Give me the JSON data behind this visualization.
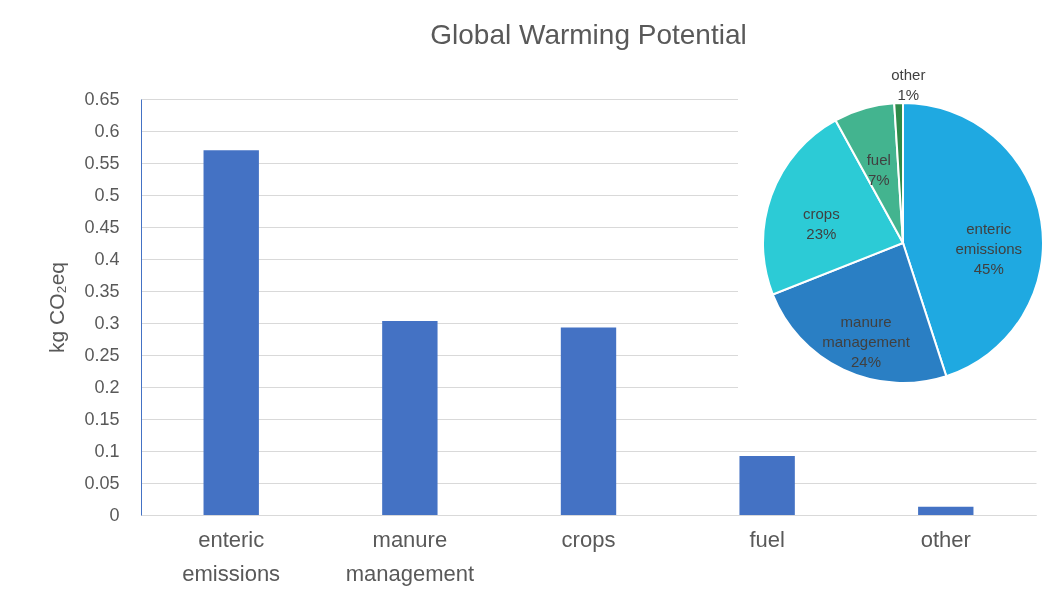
{
  "chart_data": [
    {
      "type": "bar",
      "title": "Global Warming Potential",
      "ylabel": "kg CO₂eq",
      "categories": [
        "enteric emissions",
        "manure management",
        "crops",
        "fuel",
        "other"
      ],
      "values": [
        0.57,
        0.303,
        0.293,
        0.092,
        0.013
      ],
      "color": "#4472c4",
      "ylim": [
        0,
        0.65
      ],
      "yticks": [
        0,
        0.05,
        0.1,
        0.15,
        0.2,
        0.25,
        0.3,
        0.35,
        0.4,
        0.45,
        0.5,
        0.55,
        0.6,
        0.65
      ],
      "grid": "y"
    },
    {
      "type": "pie",
      "categories": [
        "enteric emissions",
        "manure management",
        "crops",
        "fuel",
        "other"
      ],
      "values": [
        45,
        24,
        23,
        7,
        1
      ],
      "colors": [
        "#1fa9e1",
        "#2a7fc4",
        "#2ccbd6",
        "#43b48f",
        "#2e8b4a"
      ],
      "value_labels": [
        "45%",
        "24%",
        "23%",
        "7%",
        "1%"
      ]
    }
  ]
}
